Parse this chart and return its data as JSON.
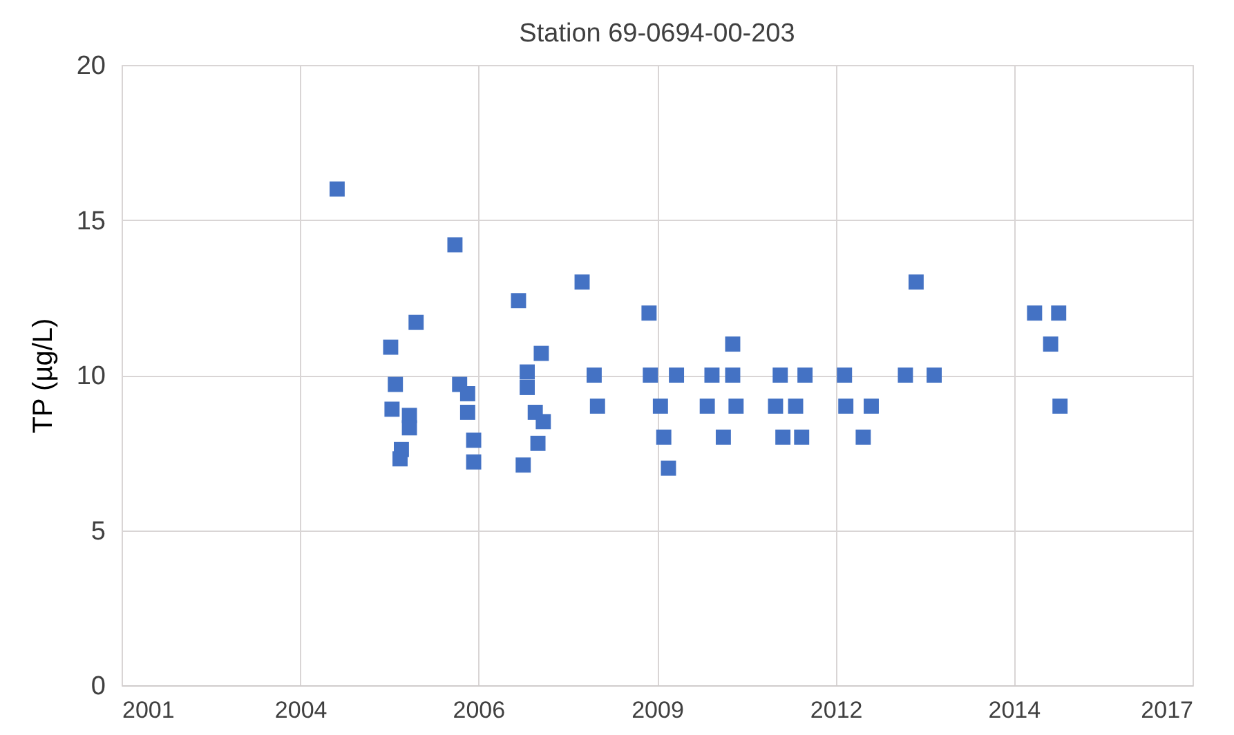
{
  "chart_data": {
    "type": "scatter",
    "title": "Station 69-0694-00-203",
    "ylabel": "TP (µg/L)",
    "marker": "square",
    "grid": true,
    "xlim": [
      2001,
      2017
    ],
    "xticks": [
      2001,
      {
        "value": 2003.67,
        "label": "2004"
      },
      {
        "value": 2006.33,
        "label": "2006"
      },
      2009,
      {
        "value": 2011.67,
        "label": "2012"
      },
      {
        "value": 2014.33,
        "label": "2014"
      },
      2017
    ],
    "ylim": [
      0,
      20
    ],
    "yticks": [
      0,
      5,
      10,
      15,
      20
    ],
    "series": [
      {
        "color": "#4472c4",
        "x": [
          2004.22,
          2005.98,
          2005.4,
          2005.02,
          2005.09,
          2005.04,
          2005.3,
          2005.3,
          2005.18,
          2005.16,
          2006.05,
          2006.17,
          2006.17,
          2006.26,
          2006.26,
          2006.93,
          2007.27,
          2007.06,
          2007.06,
          2007.18,
          2007.3,
          2007.22,
          2007.0,
          2007.88,
          2008.06,
          2008.11,
          2008.88,
          2008.9,
          2009.29,
          2009.05,
          2009.1,
          2009.17,
          2010.13,
          2009.82,
          2010.13,
          2009.75,
          2010.18,
          2009.99,
          2010.84,
          2011.21,
          2010.77,
          2011.07,
          2010.88,
          2011.16,
          2011.8,
          2011.82,
          2012.2,
          2012.08,
          2012.87,
          2012.71,
          2013.14,
          2014.64,
          2015.0,
          2014.88,
          2015.02
        ],
        "values": [
          16,
          14.2,
          11.7,
          10.9,
          9.7,
          8.9,
          8.7,
          8.3,
          7.6,
          7.3,
          9.7,
          9.4,
          8.8,
          7.9,
          7.2,
          12.4,
          10.7,
          10.1,
          9.6,
          8.8,
          8.5,
          7.8,
          7.1,
          13,
          10,
          9,
          12,
          10,
          10,
          9,
          8,
          7,
          11,
          10,
          10,
          9,
          9,
          8,
          10,
          10,
          9,
          9,
          8,
          8,
          10,
          9,
          9,
          8,
          13,
          10,
          10,
          12,
          12,
          11,
          9
        ]
      }
    ]
  }
}
